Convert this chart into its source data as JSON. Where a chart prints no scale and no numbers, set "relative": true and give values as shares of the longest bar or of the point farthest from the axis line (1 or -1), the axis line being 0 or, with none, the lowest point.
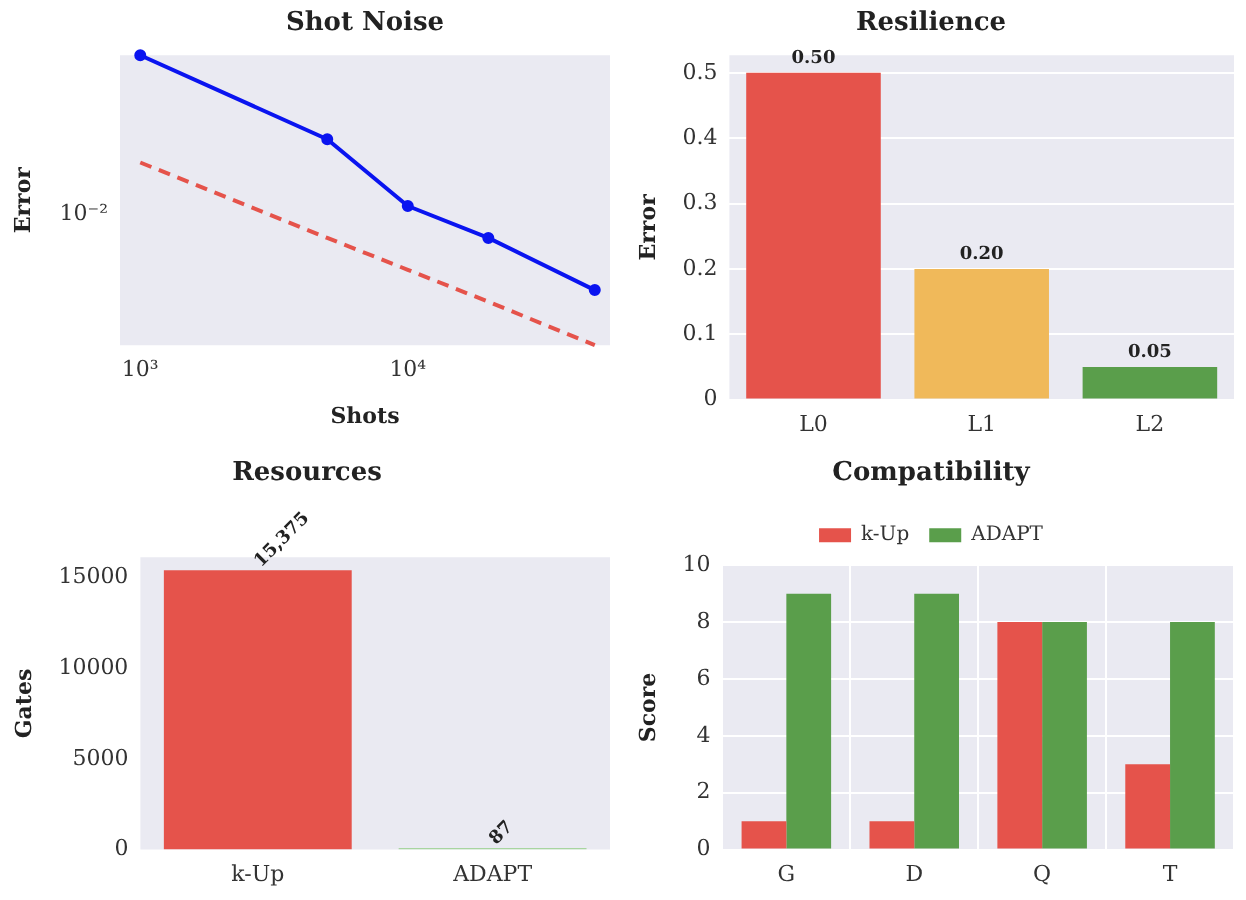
{
  "chart_data": [
    {
      "type": "line",
      "title": "Shot Noise",
      "xlabel": "Shots",
      "ylabel": "Error",
      "log": "x",
      "grid": false,
      "relative": true,
      "annotations": [
        "10⁻²"
      ],
      "xlim": [
        840,
        57000
      ],
      "xticks": [
        {
          "value": 1000,
          "label": "10³"
        },
        {
          "value": 10000,
          "label": "10⁴"
        }
      ],
      "x": [
        1000,
        5000,
        10000,
        20000,
        50000
      ],
      "series": [
        {
          "color": "#0a14f0",
          "values": [
            1,
            0.71,
            0.48,
            0.37,
            0.19
          ],
          "marker": "circle",
          "line_style": "solid"
        },
        {
          "color": "#e5534b",
          "values": [
            0.63,
            0.37,
            0.26,
            0.15,
            0
          ],
          "marker": "none",
          "line_style": "dashed"
        }
      ]
    },
    {
      "type": "bar",
      "title": "Resilience",
      "ylabel": "Error",
      "grid": "y",
      "categories": [
        "L0",
        "L1",
        "L2"
      ],
      "values": [
        0.5,
        0.2,
        0.05
      ],
      "colors": [
        "#e5534b",
        "#f0b95a",
        "#5a9e4b"
      ],
      "value_labels": [
        "0.50",
        "0.20",
        "0.05"
      ],
      "ylim": [
        0,
        0.527
      ],
      "yticks": [
        0,
        0.1,
        0.2,
        0.3,
        0.4,
        0.5
      ]
    },
    {
      "type": "bar",
      "title": "Resources",
      "ylabel": "Gates",
      "grid": false,
      "categories": [
        "k-Up",
        "ADAPT"
      ],
      "values": [
        15375,
        87
      ],
      "colors": [
        "#e5534b",
        "#a8d5a0"
      ],
      "value_labels": [
        "15,375",
        "87"
      ],
      "ylim": [
        0,
        16100
      ],
      "yticks": [
        0,
        5000,
        10000,
        15000
      ]
    },
    {
      "type": "bar",
      "title": "Compatibility",
      "ylabel": "Score",
      "grid": true,
      "legend": "top",
      "categories": [
        "G",
        "D",
        "Q",
        "T"
      ],
      "series": [
        {
          "name": "k-Up",
          "color": "#e5534b",
          "values": [
            1,
            1,
            8,
            3
          ]
        },
        {
          "name": "ADAPT",
          "color": "#5a9e4b",
          "values": [
            9,
            9,
            8,
            8
          ]
        }
      ],
      "ylim": [
        0,
        10
      ],
      "yticks": [
        0,
        2,
        4,
        6,
        8,
        10
      ]
    }
  ]
}
